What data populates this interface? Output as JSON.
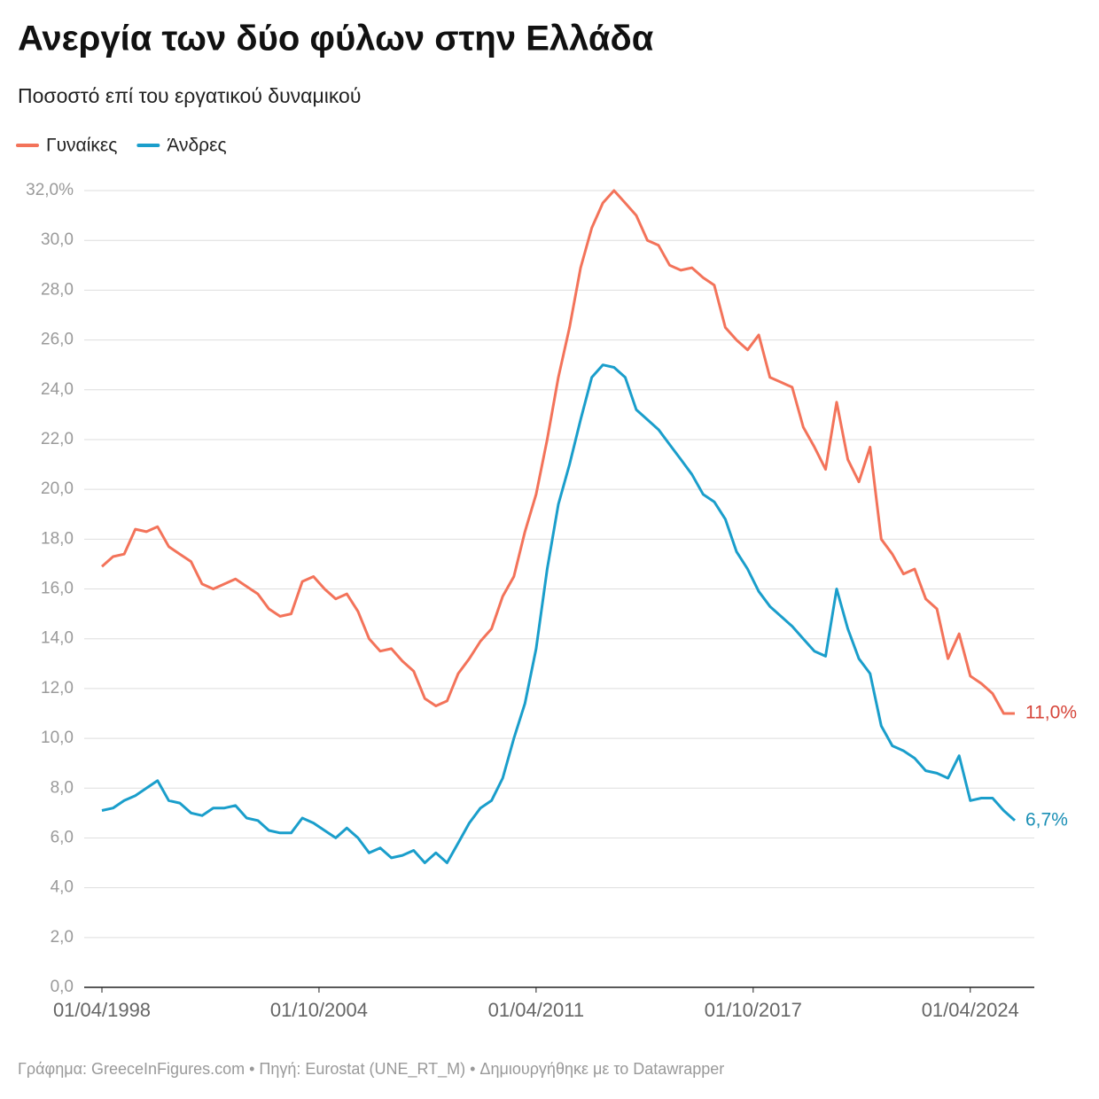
{
  "chart_data": {
    "type": "line",
    "title": "Ανεργία των δύο φύλων στην Ελλάδα",
    "subtitle": "Ποσοστό επί του εργατικού δυναμικού",
    "source": "Γράφημα: GreeceInFigures.com • Πηγή: Eurostat (UNE_RT_M) • Δημιουργήθηκε με το Datawrapper",
    "x": [
      "01/04/1998",
      "01/08/1998",
      "01/12/1998",
      "01/04/1999",
      "01/08/1999",
      "01/12/1999",
      "01/04/2000",
      "01/08/2000",
      "01/12/2000",
      "01/04/2001",
      "01/08/2001",
      "01/12/2001",
      "01/04/2002",
      "01/08/2002",
      "01/12/2002",
      "01/04/2003",
      "01/08/2003",
      "01/12/2003",
      "01/04/2004",
      "01/08/2004",
      "01/12/2004",
      "01/04/2005",
      "01/08/2005",
      "01/12/2005",
      "01/04/2006",
      "01/08/2006",
      "01/12/2006",
      "01/04/2007",
      "01/08/2007",
      "01/12/2007",
      "01/04/2008",
      "01/08/2008",
      "01/12/2008",
      "01/04/2009",
      "01/08/2009",
      "01/12/2009",
      "01/04/2010",
      "01/08/2010",
      "01/12/2010",
      "01/04/2011",
      "01/08/2011",
      "01/12/2011",
      "01/04/2012",
      "01/08/2012",
      "01/12/2012",
      "01/04/2013",
      "01/08/2013",
      "01/12/2013",
      "01/04/2014",
      "01/08/2014",
      "01/12/2014",
      "01/04/2015",
      "01/08/2015",
      "01/12/2015",
      "01/04/2016",
      "01/08/2016",
      "01/12/2016",
      "01/04/2017",
      "01/08/2017",
      "01/12/2017",
      "01/04/2018",
      "01/08/2018",
      "01/12/2018",
      "01/04/2019",
      "01/08/2019",
      "01/12/2019",
      "01/04/2020",
      "01/08/2020",
      "01/12/2020",
      "01/04/2021",
      "01/08/2021",
      "01/12/2021",
      "01/04/2022",
      "01/08/2022",
      "01/12/2022",
      "01/04/2023",
      "01/08/2023",
      "01/12/2023",
      "01/04/2024",
      "01/08/2024",
      "01/12/2024",
      "01/04/2025",
      "01/08/2025"
    ],
    "series": [
      {
        "name": "Γυναίκες",
        "color": "#f3735a",
        "label_color": "#d6453a",
        "values": [
          16.9,
          17.3,
          17.4,
          18.4,
          18.3,
          18.5,
          17.7,
          17.4,
          17.1,
          16.2,
          16.0,
          16.2,
          16.4,
          16.1,
          15.8,
          15.2,
          14.9,
          15.0,
          16.3,
          16.5,
          16.0,
          15.6,
          15.8,
          15.1,
          14.0,
          13.5,
          13.6,
          13.1,
          12.7,
          11.6,
          11.3,
          11.5,
          12.6,
          13.2,
          13.9,
          14.4,
          15.7,
          16.5,
          18.3,
          19.8,
          22.0,
          24.5,
          26.5,
          28.9,
          30.5,
          31.5,
          32.0,
          31.5,
          31.0,
          30.0,
          29.8,
          29.0,
          28.8,
          28.9,
          28.5,
          28.2,
          26.5,
          26.0,
          25.6,
          26.2,
          24.5,
          24.3,
          24.1,
          22.5,
          21.7,
          20.8,
          23.5,
          21.2,
          20.3,
          21.7,
          18.0,
          17.4,
          16.6,
          16.8,
          15.6,
          15.2,
          13.2,
          14.2,
          12.5,
          12.2,
          11.8,
          11.0,
          11.0
        ],
        "value_labels": [
          null,
          null,
          null,
          null,
          null,
          null,
          null,
          null,
          null,
          null,
          null,
          null,
          null,
          null,
          null,
          null,
          null,
          null,
          null,
          null,
          null,
          null,
          null,
          null,
          null,
          null,
          null,
          null,
          null,
          null,
          null,
          null,
          null,
          null,
          null,
          null,
          null,
          null,
          null,
          null,
          null,
          null,
          null,
          null,
          null,
          null,
          null,
          null,
          null,
          null,
          null,
          null,
          null,
          null,
          null,
          null,
          null,
          null,
          null,
          null,
          null,
          null,
          null,
          null,
          null,
          null,
          null,
          null,
          null,
          null,
          null,
          null,
          null,
          null,
          null,
          null,
          null,
          null,
          null,
          null,
          null,
          null,
          "11,0%"
        ]
      },
      {
        "name": "Άνδρες",
        "color": "#1a9ecb",
        "label_color": "#1a8fb5",
        "values": [
          7.1,
          7.2,
          7.5,
          7.7,
          8.0,
          8.3,
          7.5,
          7.4,
          7.0,
          6.9,
          7.2,
          7.2,
          7.3,
          6.8,
          6.7,
          6.3,
          6.2,
          6.2,
          6.8,
          6.6,
          6.3,
          6.0,
          6.4,
          6.0,
          5.4,
          5.6,
          5.2,
          5.3,
          5.5,
          5.0,
          5.4,
          5.0,
          5.8,
          6.6,
          7.2,
          7.5,
          8.4,
          10.0,
          11.4,
          13.6,
          16.8,
          19.4,
          21.0,
          22.8,
          24.5,
          25.0,
          24.9,
          24.5,
          23.2,
          22.8,
          22.4,
          21.8,
          21.2,
          20.6,
          19.8,
          19.5,
          18.8,
          17.5,
          16.8,
          15.9,
          15.3,
          14.9,
          14.5,
          14.0,
          13.5,
          13.3,
          16.0,
          14.4,
          13.2,
          12.6,
          10.5,
          9.7,
          9.5,
          9.2,
          8.7,
          8.6,
          8.4,
          9.3,
          7.5,
          7.6,
          7.6,
          7.1,
          6.7
        ],
        "value_labels": [
          null,
          null,
          null,
          null,
          null,
          null,
          null,
          null,
          null,
          null,
          null,
          null,
          null,
          null,
          null,
          null,
          null,
          null,
          null,
          null,
          null,
          null,
          null,
          null,
          null,
          null,
          null,
          null,
          null,
          null,
          null,
          null,
          null,
          null,
          null,
          null,
          null,
          null,
          null,
          null,
          null,
          null,
          null,
          null,
          null,
          null,
          null,
          null,
          null,
          null,
          null,
          null,
          null,
          null,
          null,
          null,
          null,
          null,
          null,
          null,
          null,
          null,
          null,
          null,
          null,
          null,
          null,
          null,
          null,
          null,
          null,
          null,
          null,
          null,
          null,
          null,
          null,
          null,
          null,
          null,
          null,
          null,
          "6,7%"
        ]
      }
    ],
    "xlim": [
      "01/04/1998",
      "01/08/2025"
    ],
    "xticks": [
      "01/04/1998",
      "01/10/2004",
      "01/04/2011",
      "01/10/2017",
      "01/04/2024"
    ],
    "ylim": [
      0,
      32
    ],
    "yticks": [
      {
        "value": 0,
        "label": "0,0"
      },
      {
        "value": 2,
        "label": "2,0"
      },
      {
        "value": 4,
        "label": "4,0"
      },
      {
        "value": 6,
        "label": "6,0"
      },
      {
        "value": 8,
        "label": "8,0"
      },
      {
        "value": 10,
        "label": "10,0"
      },
      {
        "value": 12,
        "label": "12,0"
      },
      {
        "value": 14,
        "label": "14,0"
      },
      {
        "value": 16,
        "label": "16,0"
      },
      {
        "value": 18,
        "label": "18,0"
      },
      {
        "value": 20,
        "label": "20,0"
      },
      {
        "value": 22,
        "label": "22,0"
      },
      {
        "value": 24,
        "label": "24,0"
      },
      {
        "value": 26,
        "label": "26,0"
      },
      {
        "value": 28,
        "label": "28,0"
      },
      {
        "value": 30,
        "label": "30,0"
      },
      {
        "value": 32,
        "label": "32,0%"
      }
    ],
    "grid": true
  }
}
